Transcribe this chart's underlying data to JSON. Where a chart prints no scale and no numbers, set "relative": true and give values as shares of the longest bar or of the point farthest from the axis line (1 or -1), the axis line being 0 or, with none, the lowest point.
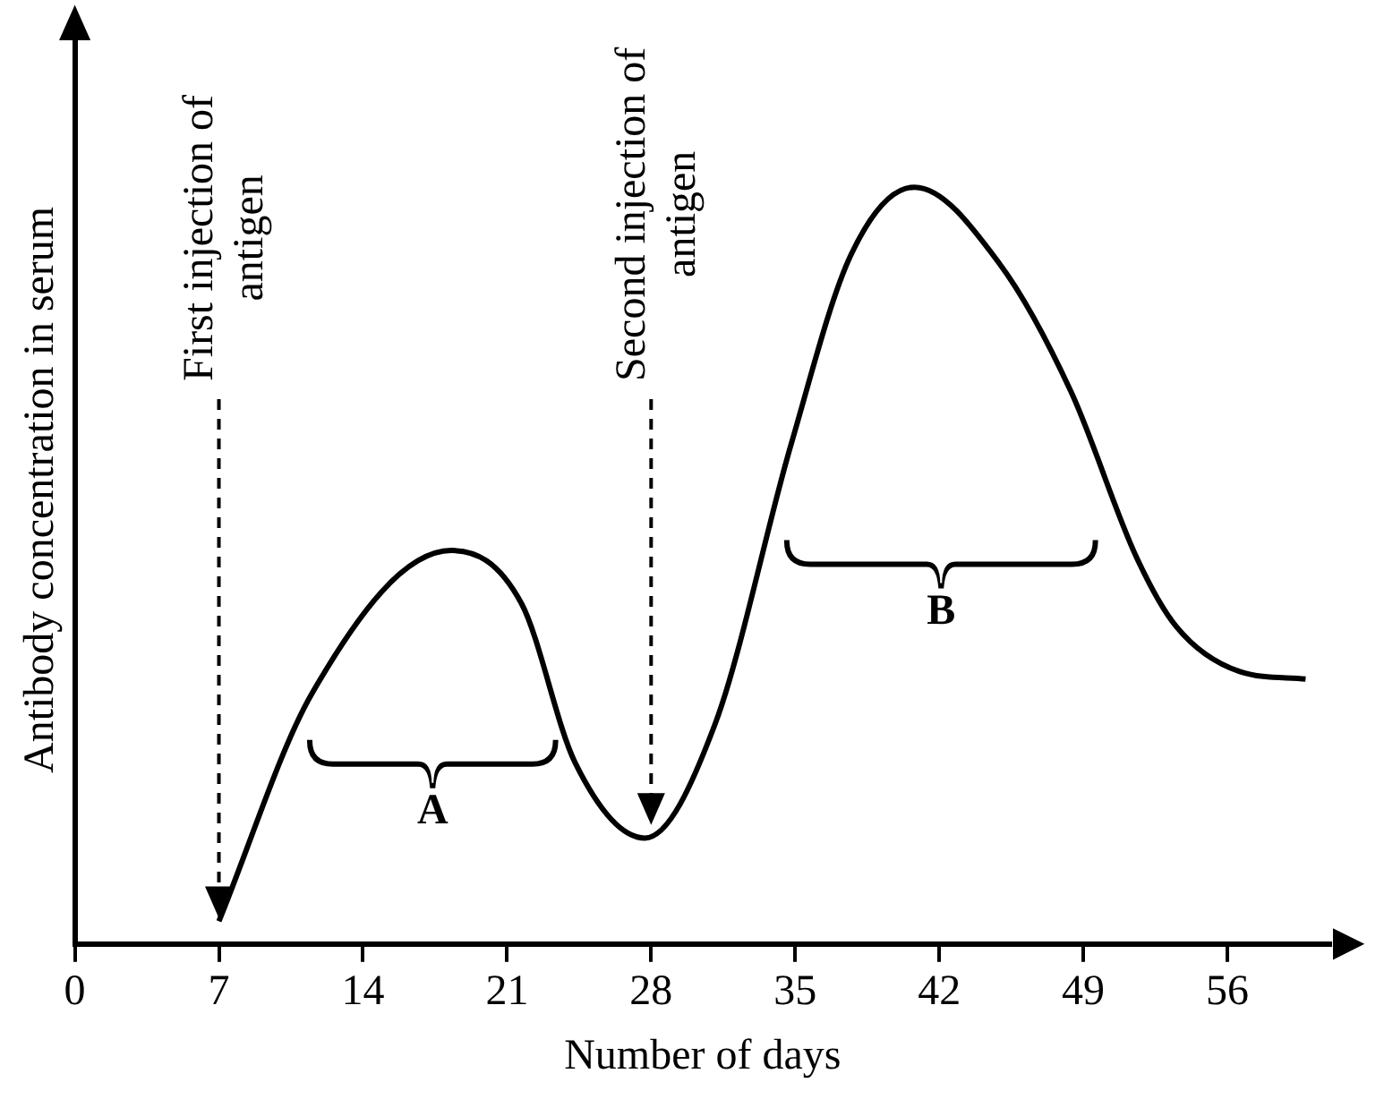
{
  "chart_data": {
    "type": "line",
    "relative": true,
    "xlabel": "Number of days",
    "ylabel": "Antibody concentration in serum",
    "x": [
      7,
      11.5,
      18.3,
      21.7,
      24.3,
      27.7,
      31.1,
      34.8,
      37.7,
      40.8,
      44.9,
      48.4,
      51.6,
      53.5,
      56.6,
      59.8
    ],
    "series": [
      {
        "color": "#000000",
        "values": [
          0.03,
          0.33,
          0.52,
          0.45,
          0.24,
          0.14,
          0.29,
          0.66,
          0.91,
          1.0,
          0.9,
          0.73,
          0.51,
          0.42,
          0.36,
          0.35
        ]
      }
    ],
    "xlim": [
      0,
      61
    ],
    "xticks": [
      0,
      7,
      14,
      21,
      28,
      35,
      42,
      49,
      56
    ],
    "ref_lines": [
      {
        "axis": "x",
        "value": 7,
        "label": "First injection of antigen",
        "line_style": "dashed"
      },
      {
        "axis": "x",
        "value": 28,
        "label": "Second injection of antigen",
        "line_style": "dashed"
      }
    ],
    "annotations": [
      "A",
      "B"
    ],
    "marker": "none",
    "line_style": "solid",
    "grid": false,
    "legend": false
  }
}
